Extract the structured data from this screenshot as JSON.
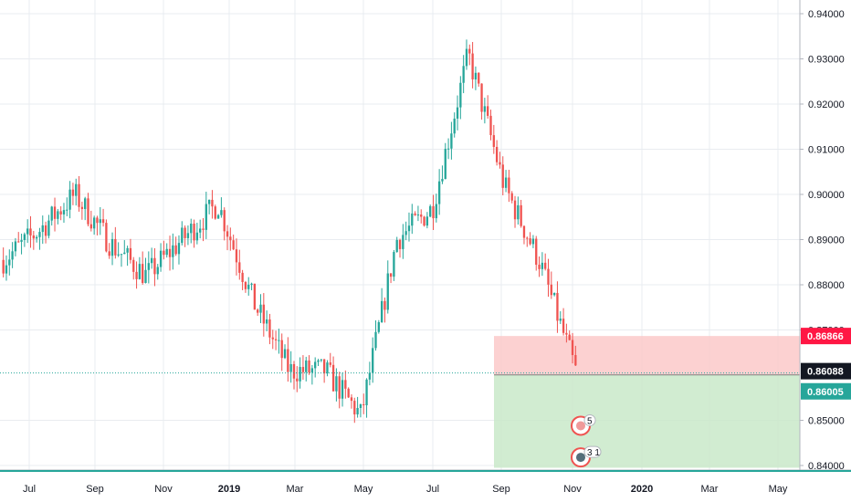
{
  "chart_data": {
    "type": "candlestick",
    "x_ticks": [
      "Jul",
      "Sep",
      "Nov",
      "2019",
      "Mar",
      "May",
      "Jul",
      "Sep",
      "Nov",
      "2020",
      "Mar",
      "May"
    ],
    "y_ticks": [
      "0.94000",
      "0.93000",
      "0.92000",
      "0.91000",
      "0.90000",
      "0.89000",
      "0.88000",
      "0.87000",
      "0.85000",
      "0.84000"
    ],
    "ylim": [
      0.8395,
      0.9425
    ],
    "grid": true,
    "price_labels": {
      "stop": "0.86866",
      "last": "0.86088",
      "entry": "0.86005"
    },
    "position": {
      "side": "short",
      "entry": 0.86005,
      "stop": 0.86866,
      "target": 0.8395
    },
    "markers": [
      {
        "label": "5",
        "value": 0.8488
      },
      {
        "label": "3 1",
        "value": 0.8418
      }
    ],
    "colors": {
      "up": "#26a69a",
      "down": "#ef5350",
      "stop_zone": "#fcc9c9",
      "target_zone": "#c9e9c9",
      "stop_tag": "#ff1744",
      "last_tag": "#131722",
      "entry_tag": "#26a69a"
    },
    "series": [
      {
        "dates": [
          "2018-07",
          "2018-08",
          "2018-09",
          "2018-10",
          "2018-11",
          "2018-12",
          "2019-01",
          "2019-02",
          "2019-03",
          "2019-04",
          "2019-05",
          "2019-06",
          "2019-07",
          "2019-08",
          "2019-09",
          "2019-10",
          "2019-11"
        ],
        "values": [
          0.8855,
          0.892,
          0.9,
          0.889,
          0.882,
          0.89,
          0.898,
          0.876,
          0.861,
          0.861,
          0.851,
          0.89,
          0.897,
          0.931,
          0.902,
          0.885,
          0.861
        ]
      }
    ]
  }
}
